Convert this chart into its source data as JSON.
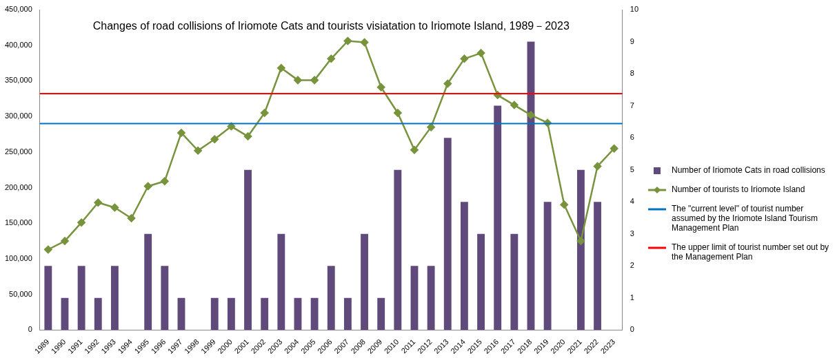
{
  "chart_data": {
    "type": "bar",
    "title": "Changes of road collisions of Iriomote Cats and tourists visiatation to Iriomote Island, 1989－2023",
    "categories": [
      "1989",
      "1990",
      "1991",
      "1992",
      "1993",
      "1994",
      "1995",
      "1996",
      "1997",
      "1998",
      "1999",
      "2000",
      "2001",
      "2002",
      "2003",
      "2004",
      "2005",
      "2006",
      "2007",
      "2008",
      "2009",
      "2010",
      "2011",
      "2012",
      "2013",
      "2014",
      "2015",
      "2016",
      "2017",
      "2018",
      "2019",
      "2020",
      "2021",
      "2022",
      "2023"
    ],
    "series": [
      {
        "name": "Number of Iriomote Cats in road collisions",
        "axis": "y2",
        "color": "#604a7b",
        "values": [
          2,
          1,
          2,
          1,
          2,
          0,
          3,
          2,
          1,
          0,
          1,
          1,
          5,
          1,
          3,
          1,
          1,
          2,
          1,
          3,
          1,
          5,
          2,
          2,
          6,
          4,
          3,
          7,
          3,
          9,
          4,
          0,
          5,
          4,
          0
        ]
      },
      {
        "name": "Number of tourists to Iriomote Island",
        "type": "line",
        "color": "#77933c",
        "marker": "diamond",
        "values": [
          113000,
          125000,
          151000,
          179000,
          172000,
          157000,
          202000,
          209000,
          277000,
          252000,
          268000,
          286000,
          272000,
          305000,
          368000,
          351000,
          351000,
          381000,
          406000,
          404000,
          341000,
          305000,
          253000,
          285000,
          346000,
          381000,
          389000,
          330000,
          316000,
          302000,
          291000,
          176000,
          125000,
          230000,
          255000
        ]
      }
    ],
    "ylim": [
      0,
      450000
    ],
    "yticks": [
      {
        "value": 0,
        "label": "0"
      },
      {
        "value": 50000,
        "label": "50,000"
      },
      {
        "value": 100000,
        "label": "100,000"
      },
      {
        "value": 150000,
        "label": "150,000"
      },
      {
        "value": 200000,
        "label": "200,000"
      },
      {
        "value": 250000,
        "label": "250,000"
      },
      {
        "value": 300000,
        "label": "300,000"
      },
      {
        "value": 350000,
        "label": "350,000"
      },
      {
        "value": 400000,
        "label": "400,000"
      },
      {
        "value": 450000,
        "label": "450,000"
      }
    ],
    "y2lim": [
      0,
      10
    ],
    "y2ticks": [
      0,
      1,
      2,
      3,
      4,
      5,
      6,
      7,
      8,
      9,
      10
    ],
    "ref_lines": [
      {
        "axis": "y",
        "value": 290000,
        "label": "The \"current level\" of tourist number assumed by the Iriomote Island Tourism Management Plan",
        "color": "#0070c0"
      },
      {
        "axis": "y",
        "value": 332000,
        "label": "The upper limit of tourist number set out by the Management Plan",
        "color": "#ff0000"
      }
    ],
    "grid": false,
    "legend": "right"
  }
}
